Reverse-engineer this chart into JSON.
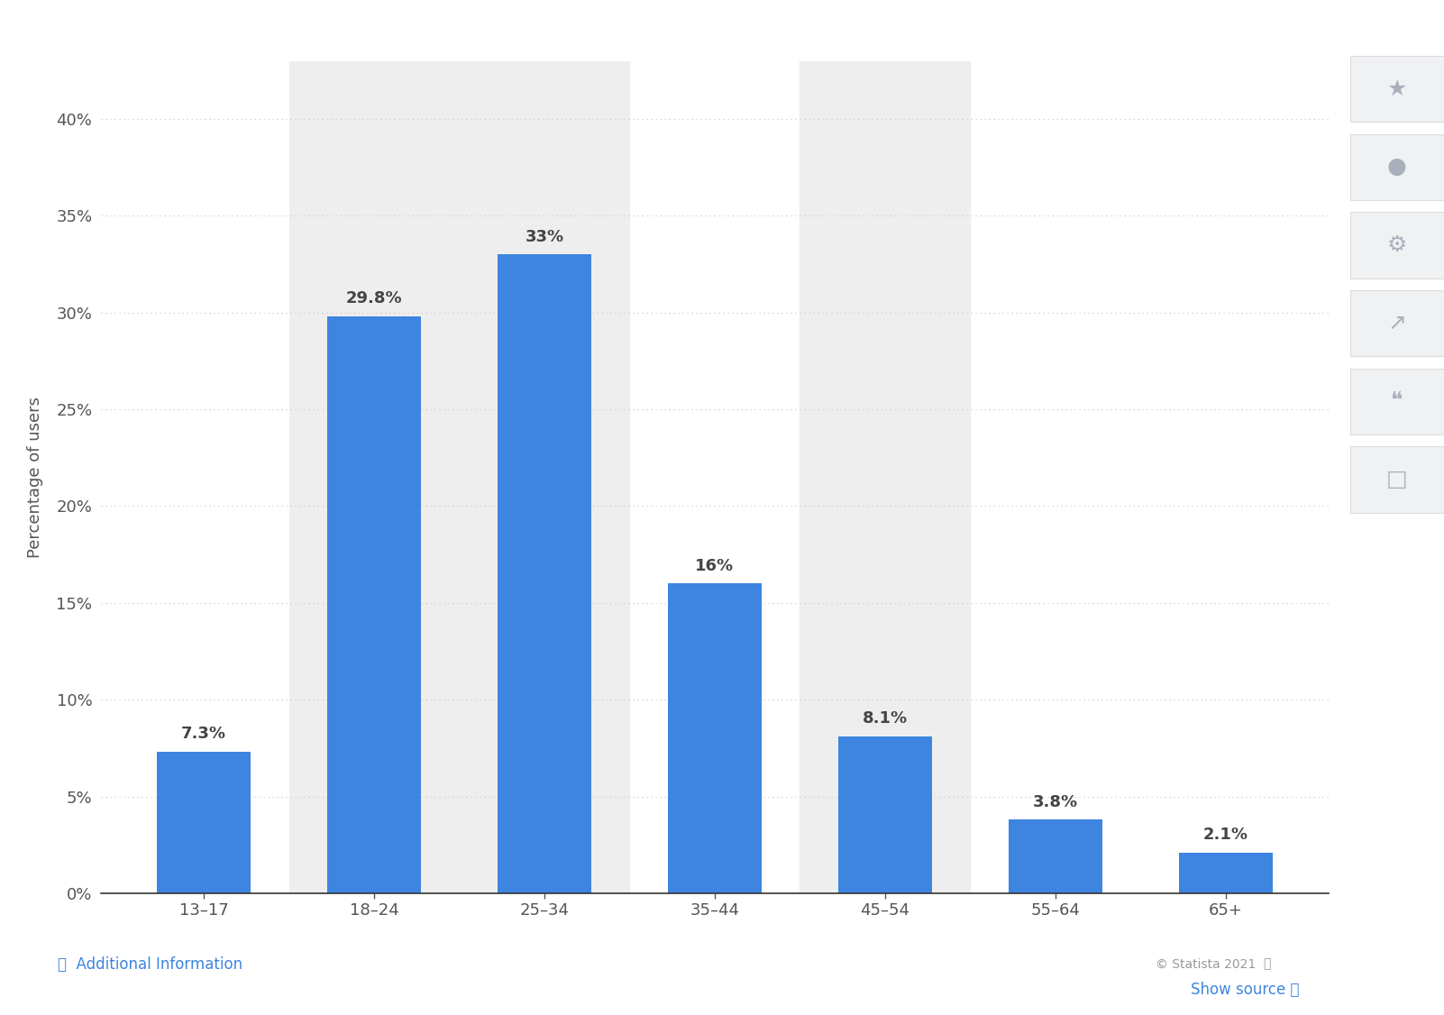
{
  "categories": [
    "13–17",
    "18–24",
    "25–34",
    "35–44",
    "45–54",
    "55–64",
    "65+"
  ],
  "values": [
    7.3,
    29.8,
    33.0,
    16.0,
    8.1,
    3.8,
    2.1
  ],
  "labels": [
    "7.3%",
    "29.8%",
    "33%",
    "16%",
    "8.1%",
    "3.8%",
    "2.1%"
  ],
  "bar_color": "#3d85e0",
  "background_color": "#f5f5f5",
  "plot_bg_color": "#ffffff",
  "card_bg_color": "#ffffff",
  "ylabel": "Percentage of users",
  "yticks": [
    0,
    5,
    10,
    15,
    20,
    25,
    30,
    35,
    40
  ],
  "ytick_labels": [
    "0%",
    "5%",
    "10%",
    "15%",
    "20%",
    "25%",
    "30%",
    "35%",
    "40%"
  ],
  "ylim": [
    0,
    43
  ],
  "grid_color": "#cccccc",
  "tick_color": "#555555",
  "label_color": "#444444",
  "tick_fontsize": 13,
  "ylabel_fontsize": 13,
  "bar_label_fontsize": 13,
  "shaded_cols": [
    1,
    2,
    4
  ],
  "shade_color": "#eeeeee",
  "footer_text": "© Statista 2021",
  "footer_left_text": "ⓘ  Additional Information",
  "footer_right_text": "Show source ⓘ",
  "footer_color": "#999999",
  "footer_link_color": "#3d85e0",
  "sidebar_icon_color": "#bbbbcc",
  "sidebar_bg": "#f0f0f0"
}
